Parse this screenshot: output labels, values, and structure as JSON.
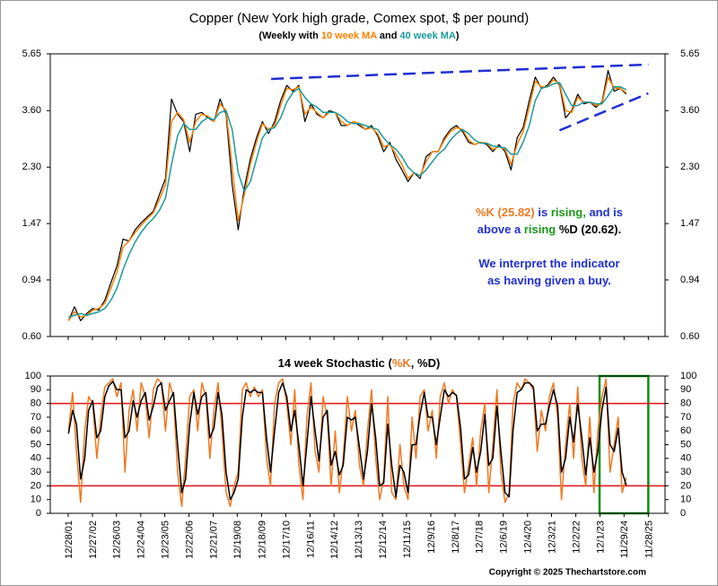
{
  "chart_data": [
    {
      "type": "line",
      "title": "Copper (New York high grade, Comex spot, $ per pound)",
      "subtitle_parts": [
        "(Weekly with ",
        " and ",
        ")"
      ],
      "log_y": true,
      "xlim": [
        2001.25,
        2026.6
      ],
      "ylim": [
        0.6,
        5.65
      ],
      "yticks": [
        {
          "value": 0.6,
          "label": "0.60"
        },
        {
          "value": 0.94,
          "label": "0.94"
        },
        {
          "value": 1.47,
          "label": "1.47"
        },
        {
          "value": 2.3,
          "label": "2.30"
        },
        {
          "value": 3.6,
          "label": "3.60"
        },
        {
          "value": 5.65,
          "label": "5.65"
        }
      ],
      "x": [
        2002,
        2002.25,
        2002.5,
        2002.75,
        2003,
        2003.25,
        2003.5,
        2003.75,
        2004,
        2004.25,
        2004.5,
        2004.75,
        2005,
        2005.25,
        2005.5,
        2005.75,
        2006,
        2006.25,
        2006.5,
        2006.75,
        2007,
        2007.25,
        2007.5,
        2007.75,
        2008,
        2008.25,
        2008.5,
        2008.75,
        2009,
        2009.25,
        2009.5,
        2009.75,
        2010,
        2010.25,
        2010.5,
        2010.75,
        2011,
        2011.25,
        2011.5,
        2011.75,
        2012,
        2012.25,
        2012.5,
        2012.75,
        2013,
        2013.25,
        2013.5,
        2013.75,
        2014,
        2014.25,
        2014.5,
        2014.75,
        2015,
        2015.25,
        2015.5,
        2015.75,
        2016,
        2016.25,
        2016.5,
        2016.75,
        2017,
        2017.25,
        2017.5,
        2017.75,
        2018,
        2018.25,
        2018.5,
        2018.75,
        2019,
        2019.25,
        2019.5,
        2019.75,
        2020,
        2020.25,
        2020.5,
        2020.75,
        2021,
        2021.25,
        2021.5,
        2021.75,
        2022,
        2022.25,
        2022.5,
        2022.75,
        2023,
        2023.25,
        2023.5,
        2023.75,
        2024,
        2024.25,
        2024.5,
        2024.75,
        2025
      ],
      "series": [
        {
          "color": "#000000",
          "values": [
            0.68,
            0.76,
            0.68,
            0.72,
            0.75,
            0.74,
            0.8,
            0.92,
            1.05,
            1.3,
            1.28,
            1.4,
            1.48,
            1.55,
            1.62,
            1.85,
            2.1,
            3.95,
            3.5,
            3.3,
            2.6,
            3.5,
            3.55,
            3.4,
            3.3,
            3.95,
            3.5,
            2.0,
            1.4,
            1.95,
            2.45,
            2.9,
            3.3,
            3.0,
            3.3,
            3.9,
            4.4,
            4.2,
            4.4,
            3.3,
            3.8,
            3.5,
            3.4,
            3.6,
            3.55,
            3.2,
            3.2,
            3.3,
            3.2,
            3.1,
            3.2,
            2.95,
            2.6,
            2.8,
            2.45,
            2.25,
            2.05,
            2.2,
            2.1,
            2.5,
            2.6,
            2.6,
            2.9,
            3.1,
            3.2,
            3.05,
            2.8,
            2.75,
            2.8,
            2.75,
            2.6,
            2.75,
            2.6,
            2.25,
            2.9,
            3.15,
            3.9,
            4.7,
            4.3,
            4.4,
            4.7,
            4.4,
            3.4,
            3.6,
            4.1,
            3.8,
            3.85,
            3.7,
            3.85,
            4.95,
            4.2,
            4.3,
            4.1
          ]
        },
        {
          "name": "10 week MA",
          "color": "#ff8000",
          "values": [
            0.68,
            0.73,
            0.7,
            0.71,
            0.74,
            0.75,
            0.78,
            0.88,
            1.0,
            1.22,
            1.28,
            1.37,
            1.45,
            1.53,
            1.6,
            1.78,
            2.0,
            3.3,
            3.55,
            3.35,
            2.8,
            3.3,
            3.5,
            3.45,
            3.3,
            3.8,
            3.6,
            2.3,
            1.5,
            1.85,
            2.35,
            2.8,
            3.25,
            3.1,
            3.2,
            3.75,
            4.3,
            4.25,
            4.35,
            3.5,
            3.7,
            3.55,
            3.4,
            3.55,
            3.55,
            3.3,
            3.2,
            3.3,
            3.25,
            3.1,
            3.15,
            3.0,
            2.7,
            2.75,
            2.55,
            2.35,
            2.1,
            2.2,
            2.15,
            2.4,
            2.6,
            2.6,
            2.85,
            3.05,
            3.15,
            3.1,
            2.85,
            2.75,
            2.8,
            2.78,
            2.65,
            2.7,
            2.65,
            2.35,
            2.75,
            3.05,
            3.7,
            4.55,
            4.35,
            4.35,
            4.6,
            4.45,
            3.6,
            3.55,
            4.0,
            3.85,
            3.85,
            3.75,
            3.8,
            4.7,
            4.3,
            4.3,
            4.15
          ]
        },
        {
          "name": "40 week MA",
          "color": "#1a9a9a",
          "values": [
            0.7,
            0.71,
            0.72,
            0.71,
            0.72,
            0.73,
            0.75,
            0.8,
            0.88,
            1.02,
            1.15,
            1.27,
            1.37,
            1.46,
            1.53,
            1.63,
            1.8,
            2.35,
            2.95,
            3.25,
            3.1,
            3.1,
            3.3,
            3.4,
            3.35,
            3.55,
            3.6,
            3.1,
            2.2,
            1.9,
            2.05,
            2.45,
            2.9,
            3.1,
            3.15,
            3.4,
            3.85,
            4.15,
            4.3,
            4.0,
            3.8,
            3.7,
            3.55,
            3.55,
            3.55,
            3.45,
            3.3,
            3.25,
            3.25,
            3.2,
            3.15,
            3.1,
            2.9,
            2.75,
            2.65,
            2.5,
            2.3,
            2.2,
            2.15,
            2.25,
            2.4,
            2.55,
            2.65,
            2.85,
            3.0,
            3.1,
            3.0,
            2.85,
            2.78,
            2.78,
            2.72,
            2.7,
            2.68,
            2.55,
            2.55,
            2.8,
            3.2,
            3.9,
            4.3,
            4.35,
            4.45,
            4.5,
            4.1,
            3.75,
            3.75,
            3.85,
            3.85,
            3.8,
            3.8,
            4.05,
            4.35,
            4.35,
            4.25
          ]
        }
      ],
      "trendlines": [
        {
          "color": "#1f2fd0",
          "x": [
            2010.36,
            2025.91
          ],
          "y": [
            4.63,
            5.19
          ]
        },
        {
          "color": "#1f2fd0",
          "x": [
            2022.25,
            2025.91
          ],
          "y": [
            3.08,
            4.13
          ]
        }
      ],
      "annotation": [
        [
          {
            "text": "%K (25.82)",
            "color": "#f07820"
          },
          {
            "text": " is ",
            "color": "#1f2fd0"
          },
          {
            "text": "rising,",
            "color": "#1a9a1a"
          },
          {
            "text": " and is",
            "color": "#1f2fd0"
          }
        ],
        [
          {
            "text": "above a ",
            "color": "#1f2fd0"
          },
          {
            "text": "rising",
            "color": "#1a9a1a"
          },
          {
            "text": " %D (20.62).",
            "color": "#000000"
          }
        ],
        [
          {
            "text": "We interpret the indicator",
            "color": "#1f2fd0"
          }
        ],
        [
          {
            "text": "as having given a buy.",
            "color": "#1f2fd0"
          }
        ]
      ]
    },
    {
      "type": "line",
      "title_parts": [
        "14 week Stochastic (",
        ", ",
        ")"
      ],
      "xlim": [
        2001.25,
        2026.6
      ],
      "ylim": [
        0,
        100
      ],
      "yticks": [
        0,
        10,
        20,
        30,
        40,
        50,
        60,
        70,
        80,
        90,
        100
      ],
      "xticks": [
        {
          "value": 2001.99,
          "label": "12/28/01"
        },
        {
          "value": 2002.99,
          "label": "12/27/02"
        },
        {
          "value": 2003.98,
          "label": "12/26/03"
        },
        {
          "value": 2004.98,
          "label": "12/24/04"
        },
        {
          "value": 2005.97,
          "label": "12/23/05"
        },
        {
          "value": 2006.97,
          "label": "12/22/06"
        },
        {
          "value": 2007.97,
          "label": "12/21/07"
        },
        {
          "value": 2008.96,
          "label": "12/19/08"
        },
        {
          "value": 2009.96,
          "label": "12/18/09"
        },
        {
          "value": 2010.96,
          "label": "12/17/10"
        },
        {
          "value": 2011.96,
          "label": "12/16/11"
        },
        {
          "value": 2012.95,
          "label": "12/14/12"
        },
        {
          "value": 2013.95,
          "label": "12/13/13"
        },
        {
          "value": 2014.95,
          "label": "12/12/14"
        },
        {
          "value": 2015.94,
          "label": "12/11/15"
        },
        {
          "value": 2016.94,
          "label": "12/9/16"
        },
        {
          "value": 2017.94,
          "label": "12/8/17"
        },
        {
          "value": 2018.93,
          "label": "12/7/18"
        },
        {
          "value": 2019.93,
          "label": "12/6/19"
        },
        {
          "value": 2020.93,
          "label": "12/4/20"
        },
        {
          "value": 2021.92,
          "label": "12/3/21"
        },
        {
          "value": 2022.92,
          "label": "12/2/22"
        },
        {
          "value": 2023.92,
          "label": "12/1/23"
        },
        {
          "value": 2024.91,
          "label": "11/29/24"
        },
        {
          "value": 2025.91,
          "label": "11/28/25"
        }
      ],
      "x": [
        2002,
        2002.17,
        2002.33,
        2002.5,
        2002.67,
        2002.83,
        2003,
        2003.17,
        2003.33,
        2003.5,
        2003.67,
        2003.83,
        2004,
        2004.17,
        2004.33,
        2004.5,
        2004.67,
        2004.83,
        2005,
        2005.17,
        2005.33,
        2005.5,
        2005.67,
        2005.83,
        2006,
        2006.17,
        2006.33,
        2006.5,
        2006.67,
        2006.83,
        2007,
        2007.17,
        2007.33,
        2007.5,
        2007.67,
        2007.83,
        2008,
        2008.17,
        2008.33,
        2008.5,
        2008.67,
        2008.83,
        2009,
        2009.17,
        2009.33,
        2009.5,
        2009.67,
        2009.83,
        2010,
        2010.17,
        2010.33,
        2010.5,
        2010.67,
        2010.83,
        2011,
        2011.17,
        2011.33,
        2011.5,
        2011.67,
        2011.83,
        2012,
        2012.17,
        2012.33,
        2012.5,
        2012.67,
        2012.83,
        2013,
        2013.17,
        2013.33,
        2013.5,
        2013.67,
        2013.83,
        2014,
        2014.17,
        2014.33,
        2014.5,
        2014.67,
        2014.83,
        2015,
        2015.17,
        2015.33,
        2015.5,
        2015.67,
        2015.83,
        2016,
        2016.17,
        2016.33,
        2016.5,
        2016.67,
        2016.83,
        2017,
        2017.17,
        2017.33,
        2017.5,
        2017.67,
        2017.83,
        2018,
        2018.17,
        2018.33,
        2018.5,
        2018.67,
        2018.83,
        2019,
        2019.17,
        2019.33,
        2019.5,
        2019.67,
        2019.83,
        2020,
        2020.17,
        2020.33,
        2020.5,
        2020.67,
        2020.83,
        2021,
        2021.17,
        2021.33,
        2021.5,
        2021.67,
        2021.83,
        2022,
        2022.17,
        2022.33,
        2022.5,
        2022.67,
        2022.83,
        2023,
        2023.17,
        2023.33,
        2023.5,
        2023.67,
        2023.83,
        2024,
        2024.17,
        2024.33,
        2024.5,
        2024.67,
        2024.83,
        2025
      ],
      "series": [
        {
          "name": "%K",
          "color": "#f07820",
          "values": [
            60,
            88,
            45,
            8,
            60,
            85,
            80,
            40,
            70,
            92,
            95,
            98,
            85,
            95,
            30,
            75,
            90,
            60,
            95,
            85,
            55,
            90,
            98,
            95,
            60,
            95,
            85,
            30,
            5,
            40,
            85,
            90,
            60,
            95,
            85,
            40,
            75,
            95,
            60,
            15,
            5,
            20,
            30,
            90,
            95,
            85,
            92,
            85,
            90,
            40,
            20,
            80,
            95,
            98,
            80,
            50,
            90,
            35,
            10,
            70,
            95,
            45,
            30,
            85,
            70,
            20,
            60,
            15,
            40,
            85,
            60,
            75,
            35,
            20,
            60,
            90,
            40,
            10,
            25,
            85,
            15,
            10,
            50,
            20,
            10,
            70,
            40,
            85,
            90,
            60,
            75,
            40,
            85,
            95,
            80,
            90,
            85,
            50,
            15,
            35,
            55,
            20,
            60,
            80,
            15,
            50,
            90,
            30,
            8,
            15,
            80,
            95,
            90,
            98,
            95,
            90,
            45,
            75,
            60,
            85,
            95,
            70,
            10,
            50,
            80,
            40,
            92,
            40,
            20,
            70,
            15,
            60,
            85,
            98,
            30,
            50,
            70,
            15,
            25.82
          ]
        },
        {
          "name": "%D",
          "color": "#000000",
          "values": [
            58,
            75,
            65,
            25,
            40,
            75,
            82,
            55,
            60,
            85,
            93,
            96,
            90,
            90,
            55,
            60,
            82,
            70,
            82,
            88,
            68,
            78,
            92,
            95,
            75,
            82,
            88,
            50,
            15,
            25,
            65,
            88,
            72,
            85,
            88,
            55,
            62,
            88,
            72,
            30,
            10,
            15,
            25,
            70,
            90,
            88,
            90,
            88,
            88,
            55,
            30,
            60,
            88,
            95,
            85,
            60,
            75,
            50,
            20,
            50,
            85,
            60,
            38,
            70,
            75,
            35,
            45,
            28,
            35,
            70,
            68,
            70,
            48,
            25,
            45,
            80,
            55,
            20,
            22,
            65,
            35,
            12,
            35,
            30,
            15,
            50,
            50,
            72,
            88,
            70,
            70,
            50,
            70,
            90,
            85,
            88,
            86,
            62,
            25,
            28,
            48,
            30,
            45,
            72,
            35,
            40,
            78,
            45,
            15,
            12,
            60,
            88,
            90,
            95,
            95,
            92,
            60,
            65,
            65,
            78,
            90,
            78,
            30,
            40,
            70,
            52,
            80,
            55,
            28,
            55,
            30,
            45,
            75,
            92,
            50,
            45,
            62,
            30,
            20.62
          ]
        }
      ],
      "reference_lines": {
        "color": "#e01010",
        "values": [
          20,
          80
        ]
      },
      "highlight": {
        "color": "#109010",
        "xlim": [
          2023.9,
          2025.91
        ]
      }
    }
  ],
  "copyright": "Copyright © 2025 Thechartstore.com"
}
